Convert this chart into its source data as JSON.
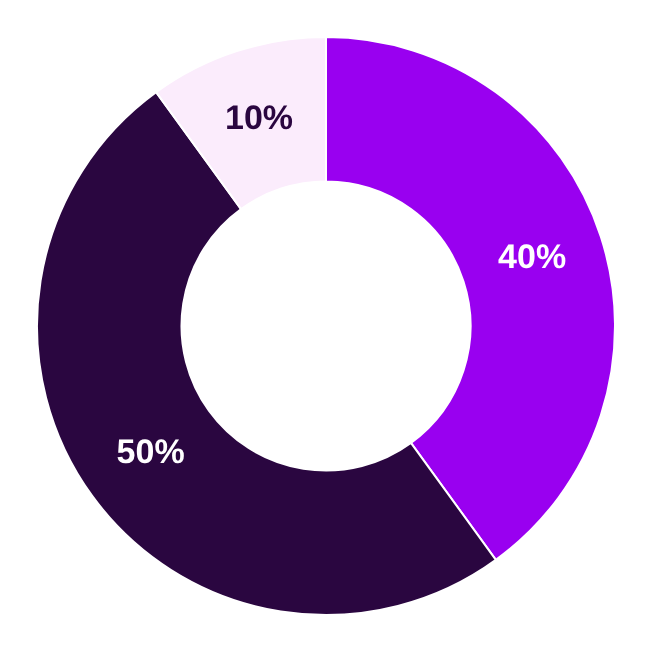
{
  "chart_data": {
    "type": "donut",
    "categories": [
      null,
      null,
      null
    ],
    "values": [
      40,
      50,
      10
    ],
    "colors": [
      "#9900f0",
      "#2a0640",
      "#fbecfc"
    ],
    "value_labels": [
      "40%",
      "50%",
      "10%"
    ],
    "legend": false
  }
}
